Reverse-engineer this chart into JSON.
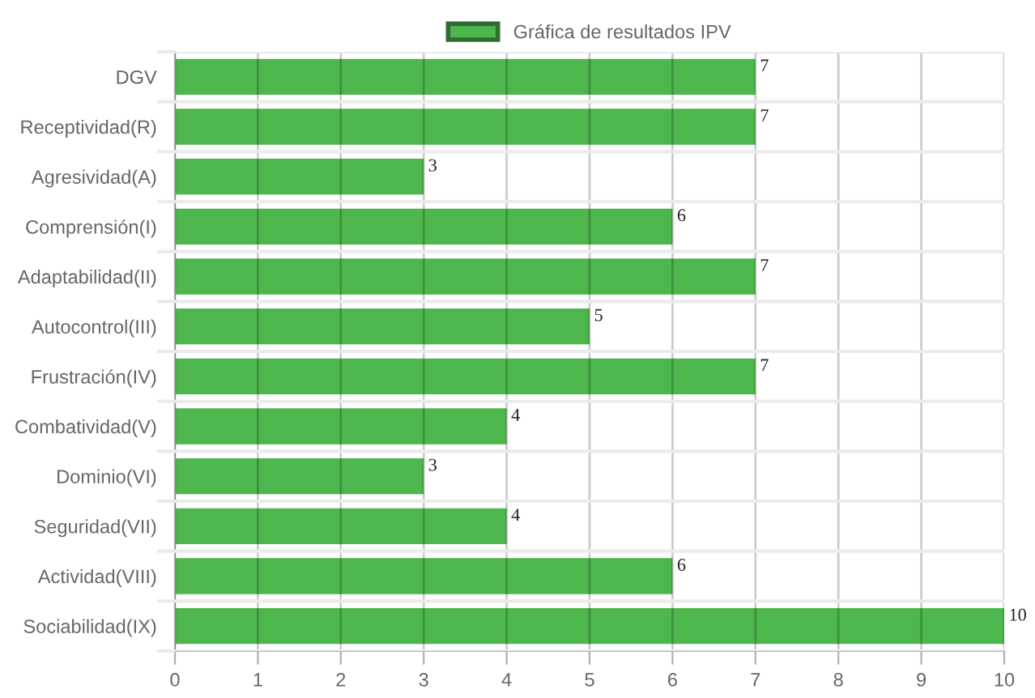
{
  "chart_data": {
    "type": "bar",
    "orientation": "horizontal",
    "categories": [
      "DGV",
      "Receptividad(R)",
      "Agresividad(A)",
      "Comprensión(I)",
      "Adaptabilidad(II)",
      "Autocontrol(III)",
      "Frustración(IV)",
      "Combatividad(V)",
      "Dominio(VI)",
      "Seguridad(VII)",
      "Actividad(VIII)",
      "Sociabilidad(IX)"
    ],
    "series": [
      {
        "name": "Gráfica de resultados IPV",
        "color": "#4db64d",
        "values": [
          7,
          7,
          3,
          6,
          7,
          5,
          7,
          4,
          3,
          4,
          6,
          10
        ]
      }
    ],
    "xlim": [
      0,
      10
    ],
    "xticks": [
      0,
      1,
      2,
      3,
      4,
      5,
      6,
      7,
      8,
      9,
      10
    ],
    "grid": true,
    "legend": "top",
    "data_labels": true
  }
}
